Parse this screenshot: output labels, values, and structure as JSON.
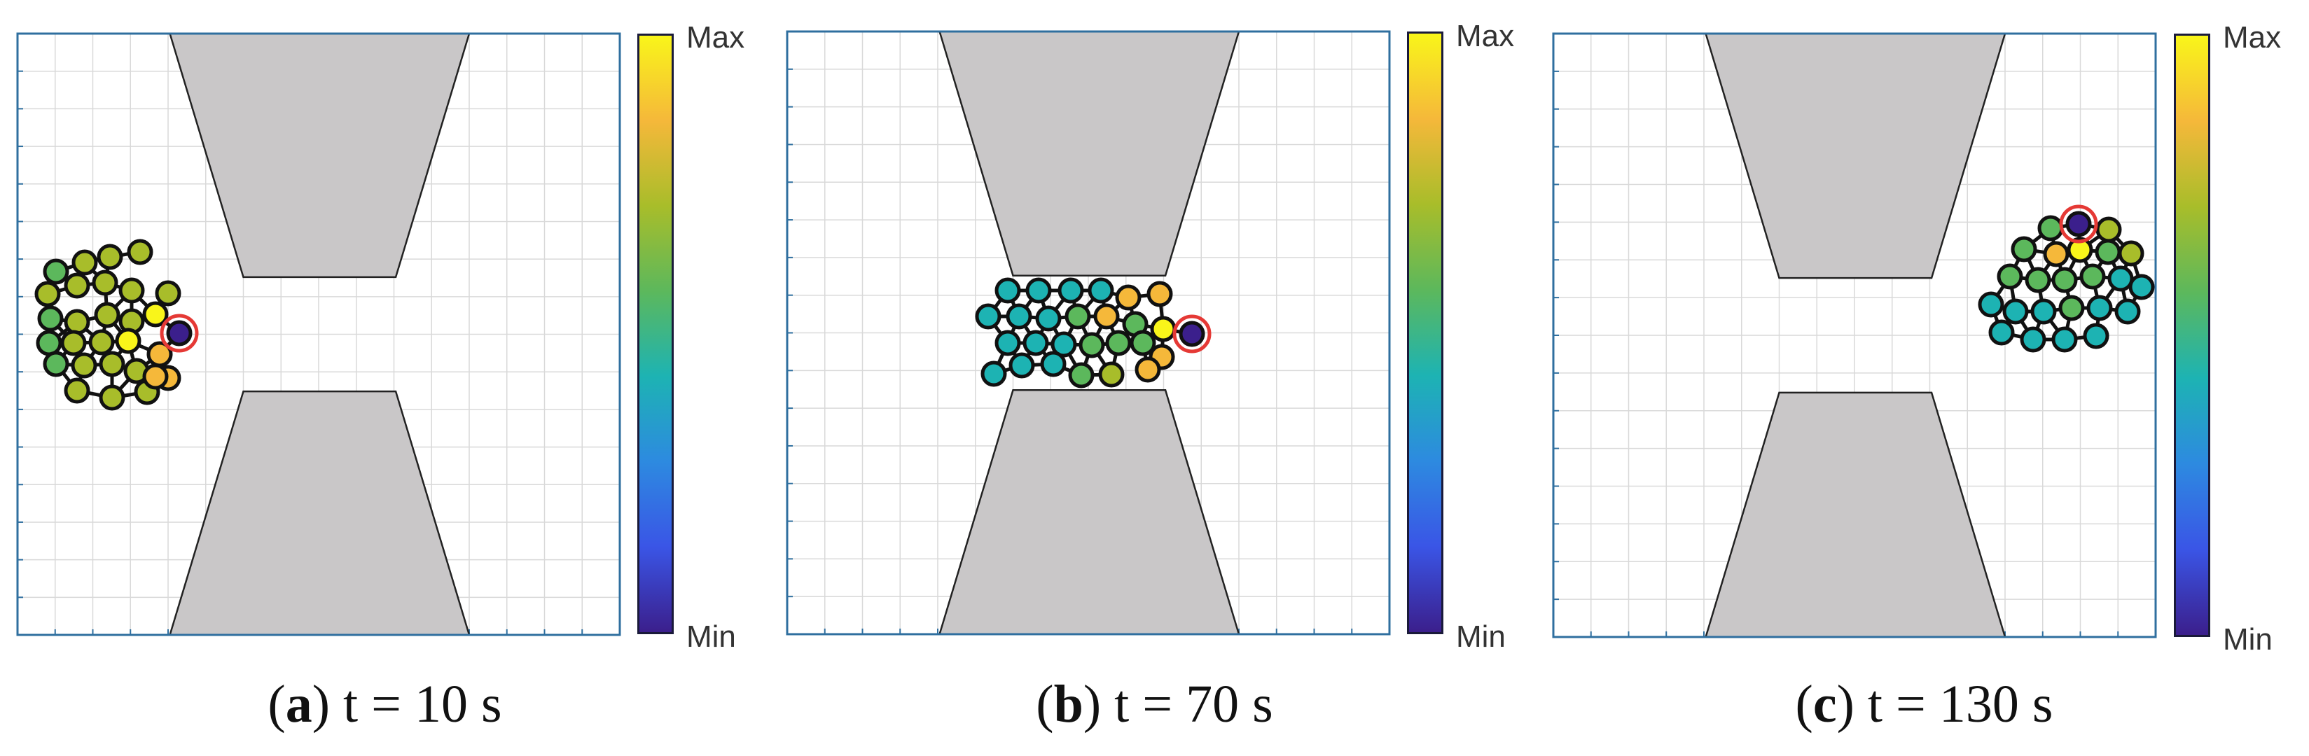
{
  "colorbar": {
    "max_label": "Max",
    "min_label": "Min",
    "colors": [
      "#F9F51A",
      "#F5B83A",
      "#A8BD2A",
      "#5CB85C",
      "#1DB3B3",
      "#2D8AE0",
      "#3A55E6",
      "#3B1F8C"
    ]
  },
  "marker_color": "#E53935",
  "obstacle_color": "#C9C7C8",
  "panels": [
    {
      "id": "a",
      "caption_letter": "a",
      "caption_text": " t = 10 s"
    },
    {
      "id": "b",
      "caption_letter": "b",
      "caption_text": " t = 70 s"
    },
    {
      "id": "c",
      "caption_letter": "c",
      "caption_text": " t = 130 s"
    }
  ]
}
